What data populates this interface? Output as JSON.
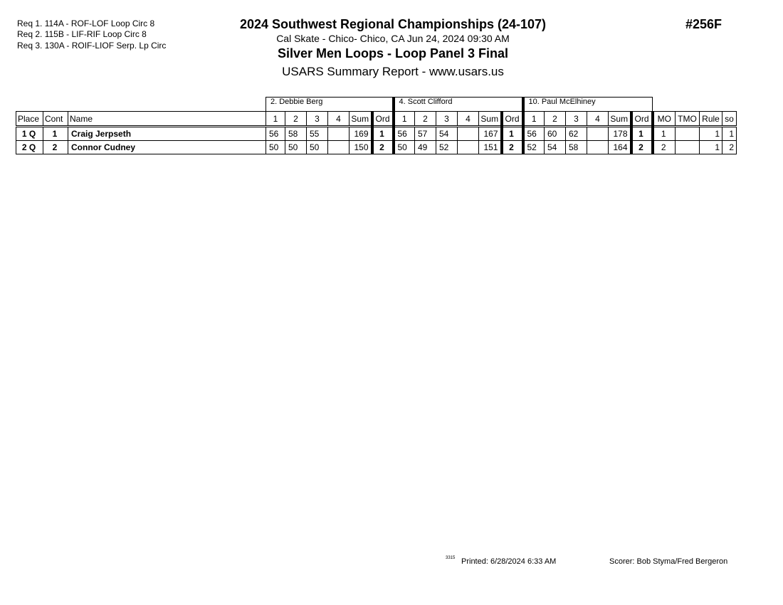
{
  "requirements": [
    "Req  1.  114A - ROF-LOF Loop Circ 8",
    "Req  2.  115B - LIF-RIF Loop Circ 8",
    "Req  3.  130A - ROIF-LIOF Serp. Lp Circ"
  ],
  "header": {
    "title": "2024 Southwest Regional Championships (24-107)",
    "location": "Cal Skate - Chico- Chico, CA  Jun 24, 2024  09:30 AM",
    "event": "Silver Men Loops - Loop Panel 3 Final",
    "report": "USARS Summary Report - www.usars.us",
    "event_number": "#256F"
  },
  "judges": [
    "2.  Debbie Berg",
    "4.  Scott Clifford",
    "10.  Paul McElhiney"
  ],
  "columns": {
    "place": "Place",
    "cont": "Cont",
    "name": "Name",
    "s1": "1",
    "s2": "2",
    "s3": "3",
    "s4": "4",
    "sum": "Sum",
    "ord": "Ord",
    "mo": "MO",
    "tmo": "TMO",
    "rule": "Rule",
    "so": "so"
  },
  "rows": [
    {
      "place": "1 Q",
      "cont": "1",
      "name": "Craig Jerpseth",
      "judges": [
        {
          "s1": "56",
          "s2": "58",
          "s3": "55",
          "s4": "",
          "sum": "169",
          "ord": "1"
        },
        {
          "s1": "56",
          "s2": "57",
          "s3": "54",
          "s4": "",
          "sum": "167",
          "ord": "1"
        },
        {
          "s1": "56",
          "s2": "60",
          "s3": "62",
          "s4": "",
          "sum": "178",
          "ord": "1"
        }
      ],
      "mo": "1",
      "tmo": "",
      "rule": "1",
      "so": "1"
    },
    {
      "place": "2 Q",
      "cont": "2",
      "name": "Connor Cudney",
      "judges": [
        {
          "s1": "50",
          "s2": "50",
          "s3": "50",
          "s4": "",
          "sum": "150",
          "ord": "2"
        },
        {
          "s1": "50",
          "s2": "49",
          "s3": "52",
          "s4": "",
          "sum": "151",
          "ord": "2"
        },
        {
          "s1": "52",
          "s2": "54",
          "s3": "58",
          "s4": "",
          "sum": "164",
          "ord": "2"
        }
      ],
      "mo": "2",
      "tmo": "",
      "rule": "1",
      "so": "2"
    }
  ],
  "footer": {
    "code": "3315",
    "printed": "Printed:  6/28/2024  6:33 AM",
    "scorer": "Scorer:   Bob Styma/Fred Bergeron"
  }
}
